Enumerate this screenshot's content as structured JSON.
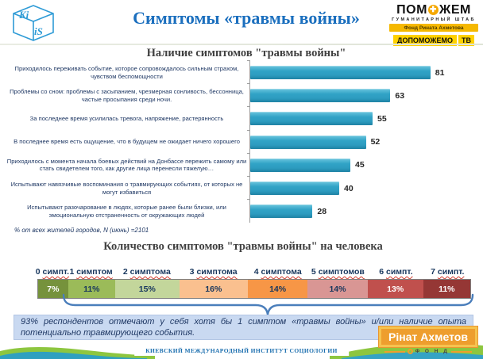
{
  "header": {
    "title": "Симптомы «травмы войны»",
    "kiis": {
      "top": "Ki",
      "bottom": "iS"
    },
    "pomozhem": {
      "title_left": "ПОМ",
      "title_right": "ЖЕМ",
      "subtitle": "ГУМАНИТАРНЫЙ ШТАБ",
      "fund": "Фонд Рината Ахметова",
      "badge": "ДОПОМОЖЕМО",
      "badge_tv": "ТВ"
    }
  },
  "callout": {
    "text": "93% респондентов отмечают у себя хотя бы 1 симптом «травмы войны» и/или наличие опыта потенциально травмирующего события."
  },
  "footer": {
    "institute": "КИЕВСКИЙ МЕЖДУНАРОДНЫЙ ИНСТИТУТ СОЦИОЛОГИИ",
    "akhmetov_name": "Рінат Ахметов",
    "akhmetov_fond": "Ф О Н Д"
  },
  "colors": {
    "title_blue": "#1b6fbe",
    "bar_teal": "#2d9cc0",
    "navy_text": "#1f3864",
    "brace_blue": "#4a7ebb",
    "callout_bg": "#c9d9f1",
    "akhmetov_orange": "#ee9e2e",
    "pomozhem_yellow": "#ffd100",
    "wave_green": "#8dc63f",
    "wave_teal": "#2fa0c0"
  },
  "chart_data": [
    {
      "type": "bar",
      "orientation": "horizontal",
      "title": "Наличие симптомов \"травмы войны\"",
      "categories": [
        "Приходилось переживать событие, которое сопровождалось сильным страхом, чувством беспомощности",
        "Проблемы со сном: проблемы с засыпанием, чрезмерная сонливость, бессонница, частые просыпания среди ночи.",
        "За последнее время усилилась тревога, напряжение, растерянность",
        "В последнее время есть ощущение, что в будущем не ожидает ничего хорошего",
        "Приходилось с момента начала боевых действий на Донбассе пережить самому или стать свидетелем того, как другие лица перенесли тяжелую…",
        "Испытывают навязчивые воспоминания о травмирующих событиях, от которых не могут избавиться",
        "Испытывают разочарование в людях, которые ранее были близки, или эмоциональную отстраненность от окружающих людей"
      ],
      "values": [
        81,
        63,
        55,
        52,
        45,
        40,
        28
      ],
      "xlim": [
        0,
        100
      ],
      "bar_color": "#2d9cc0",
      "grid": false,
      "note": "% от  всех жителей городов,  N (июнь)  =2101"
    },
    {
      "type": "stacked-bar",
      "title": "Количество симптомов \"травмы войны\" на человека",
      "segments": [
        {
          "label_num": "0",
          "label_word": "симпт.",
          "value": 7,
          "display": "7%",
          "color": "#76923c",
          "text_color": "#ffffff"
        },
        {
          "label_num": "1",
          "label_word": "симптом",
          "value": 11,
          "display": "11%",
          "color": "#9bbb59",
          "text_color": "#17365d"
        },
        {
          "label_num": "2",
          "label_word": "симптома",
          "value": 15,
          "display": "15%",
          "color": "#c3d69b",
          "text_color": "#17365d"
        },
        {
          "label_num": "3",
          "label_word": "симптома",
          "value": 16,
          "display": "16%",
          "color": "#fac08f",
          "text_color": "#17365d"
        },
        {
          "label_num": "4",
          "label_word": "симптома",
          "value": 14,
          "display": "14%",
          "color": "#f79646",
          "text_color": "#17365d"
        },
        {
          "label_num": "5",
          "label_word": "симптомов",
          "value": 14,
          "display": "14%",
          "color": "#d99694",
          "text_color": "#17365d"
        },
        {
          "label_num": "6",
          "label_word": "симпт.",
          "value": 13,
          "display": "13%",
          "color": "#c0504d",
          "text_color": "#ffffff"
        },
        {
          "label_num": "7",
          "label_word": "симпт.",
          "value": 11,
          "display": "11%",
          "color": "#953735",
          "text_color": "#ffffff"
        }
      ],
      "annotation": "93% respondents bracket"
    }
  ]
}
